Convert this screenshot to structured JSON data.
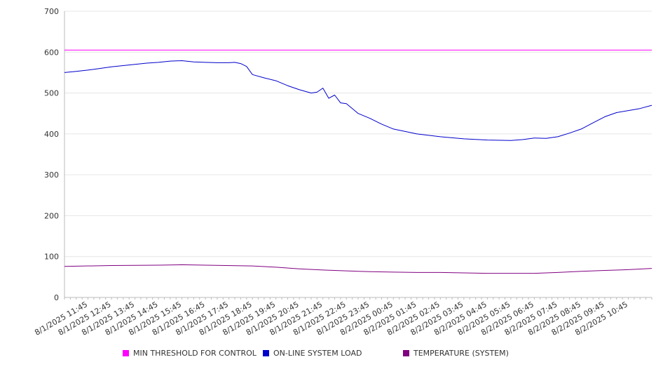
{
  "chart_data": {
    "type": "line",
    "title": "",
    "xlabel": "",
    "ylabel": "",
    "ylim": [
      0,
      700
    ],
    "yticks": [
      0,
      100,
      200,
      300,
      400,
      500,
      600,
      700
    ],
    "x_tick_labels": [
      "8/1/2025 11:45",
      "8/1/2025 12:45",
      "8/1/2025 13:45",
      "8/1/2025 14:45",
      "8/1/2025 15:45",
      "8/1/2025 16:45",
      "8/1/2025 17:45",
      "8/1/2025 18:45",
      "8/1/2025 19:45",
      "8/1/2025 20:45",
      "8/1/2025 21:45",
      "8/1/2025 22:45",
      "8/1/2025 23:45",
      "8/2/2025 00:45",
      "8/2/2025 01:45",
      "8/2/2025 02:45",
      "8/2/2025 03:45",
      "8/2/2025 04:45",
      "8/2/2025 05:45",
      "8/2/2025 06:45",
      "8/2/2025 07:45",
      "8/2/2025 08:45",
      "8/2/2025 09:45",
      "8/2/2025 10:45"
    ],
    "x_start": "8/1/2025 10:45",
    "x_end": "8/2/2025 11:45",
    "grid": true,
    "legend_position": "bottom",
    "series": [
      {
        "name": "MIN THRESHOLD FOR CONTROL",
        "color": "#ff00ff",
        "x": [
          "8/1/2025 10:45",
          "8/2/2025 11:45"
        ],
        "y": [
          605,
          605
        ]
      },
      {
        "name": "ON-LINE SYSTEM LOAD",
        "color": "#0000cc",
        "x": [
          "8/1/2025 10:45",
          "8/1/2025 11:15",
          "8/1/2025 11:45",
          "8/1/2025 12:15",
          "8/1/2025 12:45",
          "8/1/2025 13:15",
          "8/1/2025 13:45",
          "8/1/2025 14:15",
          "8/1/2025 14:45",
          "8/1/2025 15:15",
          "8/1/2025 15:45",
          "8/1/2025 16:15",
          "8/1/2025 16:45",
          "8/1/2025 17:15",
          "8/1/2025 17:45",
          "8/1/2025 18:00",
          "8/1/2025 18:15",
          "8/1/2025 18:30",
          "8/1/2025 18:45",
          "8/1/2025 19:15",
          "8/1/2025 19:45",
          "8/1/2025 20:15",
          "8/1/2025 20:45",
          "8/1/2025 21:15",
          "8/1/2025 21:30",
          "8/1/2025 21:45",
          "8/1/2025 22:00",
          "8/1/2025 22:15",
          "8/1/2025 22:30",
          "8/1/2025 22:45",
          "8/1/2025 23:15",
          "8/1/2025 23:45",
          "8/2/2025 00:15",
          "8/2/2025 00:45",
          "8/2/2025 01:45",
          "8/2/2025 02:45",
          "8/2/2025 03:45",
          "8/2/2025 04:45",
          "8/2/2025 05:45",
          "8/2/2025 06:15",
          "8/2/2025 06:45",
          "8/2/2025 07:15",
          "8/2/2025 07:45",
          "8/2/2025 08:15",
          "8/2/2025 08:45",
          "8/2/2025 09:15",
          "8/2/2025 09:45",
          "8/2/2025 10:15",
          "8/2/2025 10:45",
          "8/2/2025 11:15",
          "8/2/2025 11:45"
        ],
        "y": [
          550,
          553,
          556,
          560,
          564,
          567,
          570,
          573,
          575,
          578,
          579,
          576,
          575,
          574,
          574,
          575,
          572,
          565,
          545,
          537,
          530,
          518,
          508,
          500,
          502,
          512,
          487,
          495,
          476,
          474,
          450,
          438,
          424,
          412,
          400,
          393,
          388,
          385,
          384,
          386,
          390,
          389,
          393,
          402,
          412,
          427,
          442,
          452,
          457,
          462,
          470
        ]
      },
      {
        "name": "TEMPERATURE (SYSTEM)",
        "color": "#800080",
        "x": [
          "8/1/2025 10:45",
          "8/1/2025 12:45",
          "8/1/2025 14:45",
          "8/1/2025 15:45",
          "8/1/2025 16:45",
          "8/1/2025 18:45",
          "8/1/2025 19:45",
          "8/1/2025 20:45",
          "8/1/2025 21:45",
          "8/1/2025 22:45",
          "8/1/2025 23:45",
          "8/2/2025 00:45",
          "8/2/2025 01:45",
          "8/2/2025 02:45",
          "8/2/2025 03:45",
          "8/2/2025 04:45",
          "8/2/2025 05:45",
          "8/2/2025 06:45",
          "8/2/2025 07:45",
          "8/2/2025 08:45",
          "8/2/2025 09:45",
          "8/2/2025 10:45",
          "8/2/2025 11:45"
        ],
        "y": [
          76,
          78,
          79,
          80,
          79,
          77,
          74,
          70,
          67,
          65,
          63,
          62,
          61,
          61,
          60,
          59,
          59,
          59,
          61,
          64,
          66,
          68,
          71
        ]
      }
    ]
  }
}
